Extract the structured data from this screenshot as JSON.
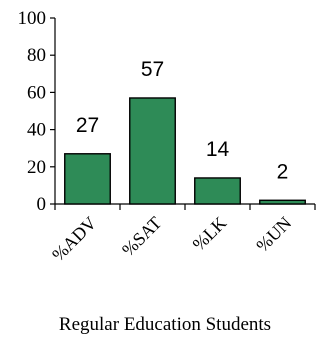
{
  "chart_data": {
    "type": "bar",
    "categories": [
      "%ADV",
      "%SAT",
      "%LK",
      "%UN"
    ],
    "values": [
      27,
      57,
      14,
      2
    ],
    "data_labels": [
      "27",
      "57",
      "14",
      "2"
    ],
    "title": "",
    "xlabel": "Regular Education Students",
    "ylabel": "",
    "ylim": [
      0,
      100
    ],
    "yticks": [
      "0",
      "20",
      "40",
      "60",
      "80",
      "100"
    ],
    "bar_color": "#2e8b57",
    "bar_edge_color": "#000000",
    "grid": false,
    "legend": "none"
  }
}
